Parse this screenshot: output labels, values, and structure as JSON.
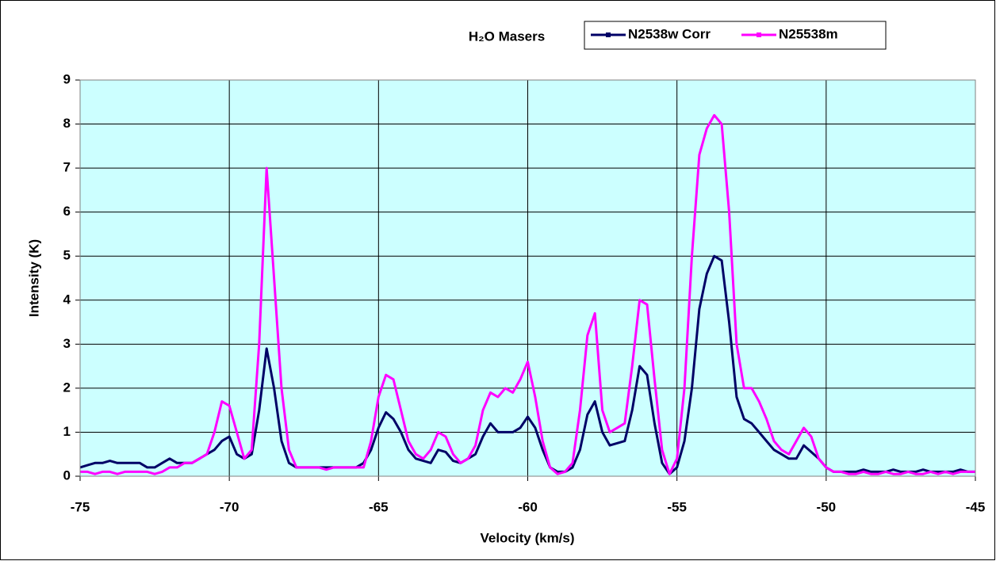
{
  "chart_data": {
    "type": "line",
    "title": "H₂O Masers",
    "x_label": "Velocity (km/s)",
    "y_label": "Intensity (K)",
    "x": [
      -75,
      -74.75,
      -74.5,
      -74.25,
      -74,
      -73.75,
      -73.5,
      -73.25,
      -73,
      -72.75,
      -72.5,
      -72.25,
      -72,
      -71.75,
      -71.5,
      -71.25,
      -71,
      -70.75,
      -70.5,
      -70.25,
      -70,
      -69.75,
      -69.5,
      -69.25,
      -69,
      -68.75,
      -68.5,
      -68.25,
      -68,
      -67.75,
      -67.5,
      -67.25,
      -67,
      -66.75,
      -66.5,
      -66.25,
      -66,
      -65.75,
      -65.5,
      -65.25,
      -65,
      -64.75,
      -64.5,
      -64.25,
      -64,
      -63.75,
      -63.5,
      -63.25,
      -63,
      -62.75,
      -62.5,
      -62.25,
      -62,
      -61.75,
      -61.5,
      -61.25,
      -61,
      -60.75,
      -60.5,
      -60.25,
      -60,
      -59.75,
      -59.5,
      -59.25,
      -59,
      -58.75,
      -58.5,
      -58.25,
      -58,
      -57.75,
      -57.5,
      -57.25,
      -57,
      -56.75,
      -56.5,
      -56.25,
      -56,
      -55.75,
      -55.5,
      -55.25,
      -55,
      -54.75,
      -54.5,
      -54.25,
      -54,
      -53.75,
      -53.5,
      -53.25,
      -53,
      -52.75,
      -52.5,
      -52.25,
      -52,
      -51.75,
      -51.5,
      -51.25,
      -51,
      -50.75,
      -50.5,
      -50.25,
      -50,
      -49.75,
      -49.5,
      -49.25,
      -49,
      -48.75,
      -48.5,
      -48.25,
      -48,
      -47.75,
      -47.5,
      -47.25,
      -47,
      -46.75,
      -46.5,
      -46.25,
      -46,
      -45.75,
      -45.5,
      -45.25,
      -45
    ],
    "series": [
      {
        "name": "N2538w Corr",
        "color": "#000066",
        "values": [
          0.2,
          0.25,
          0.3,
          0.3,
          0.35,
          0.3,
          0.3,
          0.3,
          0.3,
          0.2,
          0.2,
          0.3,
          0.4,
          0.3,
          0.3,
          0.3,
          0.4,
          0.5,
          0.6,
          0.8,
          0.9,
          0.5,
          0.4,
          0.5,
          1.5,
          2.9,
          2.0,
          0.8,
          0.3,
          0.2,
          0.2,
          0.2,
          0.2,
          0.2,
          0.2,
          0.2,
          0.2,
          0.2,
          0.3,
          0.6,
          1.1,
          1.45,
          1.3,
          1.0,
          0.6,
          0.4,
          0.35,
          0.3,
          0.6,
          0.55,
          0.35,
          0.3,
          0.4,
          0.5,
          0.9,
          1.2,
          1.0,
          1.0,
          1.0,
          1.1,
          1.35,
          1.1,
          0.6,
          0.2,
          0.1,
          0.1,
          0.2,
          0.6,
          1.4,
          1.7,
          1.0,
          0.7,
          0.75,
          0.8,
          1.5,
          2.5,
          2.3,
          1.2,
          0.3,
          0.05,
          0.2,
          0.8,
          2.0,
          3.8,
          4.6,
          5.0,
          4.9,
          3.5,
          1.8,
          1.3,
          1.2,
          1.0,
          0.8,
          0.6,
          0.5,
          0.4,
          0.4,
          0.7,
          0.55,
          0.4,
          0.2,
          0.1,
          0.1,
          0.1,
          0.1,
          0.15,
          0.1,
          0.1,
          0.1,
          0.15,
          0.1,
          0.1,
          0.1,
          0.15,
          0.1,
          0.1,
          0.1,
          0.1,
          0.15,
          0.1,
          0.1
        ]
      },
      {
        "name": "N25538m",
        "color": "#ff00ff",
        "values": [
          0.1,
          0.1,
          0.05,
          0.1,
          0.1,
          0.05,
          0.1,
          0.1,
          0.1,
          0.1,
          0.05,
          0.1,
          0.2,
          0.2,
          0.3,
          0.3,
          0.4,
          0.5,
          1.0,
          1.7,
          1.6,
          1.0,
          0.4,
          0.6,
          3.0,
          7.0,
          4.5,
          2.0,
          0.6,
          0.2,
          0.2,
          0.2,
          0.2,
          0.15,
          0.2,
          0.2,
          0.2,
          0.2,
          0.2,
          0.8,
          1.8,
          2.3,
          2.2,
          1.5,
          0.8,
          0.5,
          0.4,
          0.6,
          1.0,
          0.9,
          0.5,
          0.3,
          0.4,
          0.7,
          1.5,
          1.9,
          1.8,
          2.0,
          1.9,
          2.2,
          2.6,
          1.8,
          0.8,
          0.2,
          0.05,
          0.1,
          0.3,
          1.5,
          3.2,
          3.7,
          1.5,
          1.0,
          1.1,
          1.2,
          2.5,
          4.0,
          3.9,
          2.2,
          0.6,
          0.05,
          0.4,
          2.0,
          5.0,
          7.3,
          7.9,
          8.2,
          8.0,
          6.0,
          3.0,
          2.0,
          2.0,
          1.7,
          1.3,
          0.8,
          0.6,
          0.5,
          0.8,
          1.1,
          0.9,
          0.4,
          0.2,
          0.1,
          0.1,
          0.05,
          0.05,
          0.1,
          0.05,
          0.05,
          0.1,
          0.05,
          0.05,
          0.1,
          0.05,
          0.05,
          0.1,
          0.05,
          0.1,
          0.05,
          0.1,
          0.1,
          0.1
        ]
      }
    ],
    "xlim": [
      -75,
      -45
    ],
    "xticks": [
      -75,
      -70,
      -65,
      -60,
      -55,
      -50,
      -45
    ],
    "ylim": [
      0,
      9
    ],
    "yticks": [
      0,
      1,
      2,
      3,
      4,
      5,
      6,
      7,
      8,
      9
    ],
    "grid": true
  }
}
